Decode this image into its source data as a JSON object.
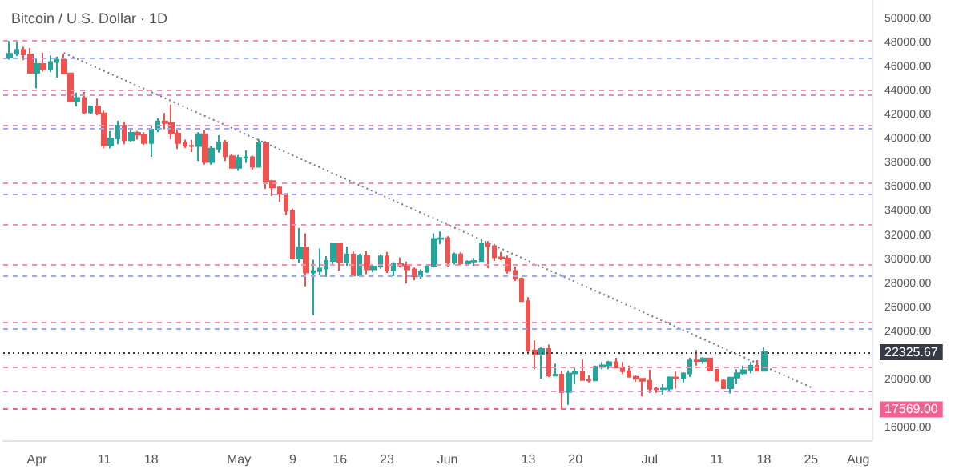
{
  "chart_data": {
    "type": "candlestick",
    "title": "Bitcoin / U.S. Dollar · 1D",
    "x": [
      "--03-28",
      "--03-29",
      "--03-30",
      "--03-31",
      "--04-01",
      "--04-02",
      "--04-03",
      "--04-04",
      "--04-05",
      "--04-06",
      "--04-07",
      "--04-08",
      "--04-09",
      "--04-10",
      "--04-11",
      "--04-12",
      "--04-13",
      "--04-14",
      "--04-15",
      "--04-16",
      "--04-17",
      "--04-18",
      "--04-19",
      "--04-20",
      "--04-21",
      "--04-22",
      "--04-23",
      "--04-24",
      "--04-25",
      "--04-26",
      "--04-27",
      "--04-28",
      "--04-29",
      "--04-30",
      "--05-01",
      "--05-02",
      "--05-03",
      "--05-04",
      "--05-05",
      "--05-06",
      "--05-07",
      "--05-08",
      "--05-09",
      "--05-10",
      "--05-11",
      "--05-12",
      "--05-13",
      "--05-14",
      "--05-15",
      "--05-16",
      "--05-17",
      "--05-18",
      "--05-19",
      "--05-20",
      "--05-21",
      "--05-22",
      "--05-23",
      "--05-24",
      "--05-25",
      "--05-26",
      "--05-27",
      "--05-28",
      "--05-29",
      "--05-30",
      "--05-31",
      "--06-01",
      "--06-02",
      "--06-03",
      "--06-04",
      "--06-05",
      "--06-06",
      "--06-07",
      "--06-08",
      "--06-09",
      "--06-10",
      "--06-11",
      "--06-12",
      "--06-13",
      "--06-14",
      "--06-15",
      "--06-16",
      "--06-17",
      "--06-18",
      "--06-19",
      "--06-20",
      "--06-21",
      "--06-22",
      "--06-23",
      "--06-24",
      "--06-25",
      "--06-26",
      "--06-27",
      "--06-28",
      "--06-29",
      "--06-30",
      "--07-01",
      "--07-02",
      "--07-03",
      "--07-04",
      "--07-05",
      "--07-06",
      "--07-07",
      "--07-08",
      "--07-09",
      "--07-10",
      "--07-11",
      "--07-12",
      "--07-13",
      "--07-14",
      "--07-15",
      "--07-16",
      "--07-17",
      "--07-18"
    ],
    "ohlc": [
      [
        46850,
        48190,
        46650,
        47130
      ],
      [
        47130,
        48100,
        46950,
        47450
      ],
      [
        47450,
        47700,
        46600,
        47070
      ],
      [
        47070,
        47600,
        45500,
        45540
      ],
      [
        45540,
        46700,
        44250,
        46280
      ],
      [
        46280,
        47200,
        45650,
        45820
      ],
      [
        45820,
        47000,
        45600,
        46450
      ],
      [
        46450,
        46900,
        45150,
        46620
      ],
      [
        46620,
        47100,
        45500,
        45500
      ],
      [
        45500,
        45500,
        43100,
        43170
      ],
      [
        43170,
        43900,
        42750,
        43440
      ],
      [
        43440,
        43950,
        42120,
        42250
      ],
      [
        42250,
        42800,
        42150,
        42750
      ],
      [
        42750,
        43400,
        42000,
        42160
      ],
      [
        42160,
        42400,
        39250,
        39530
      ],
      [
        39530,
        40700,
        39250,
        40080
      ],
      [
        40080,
        41550,
        39600,
        41150
      ],
      [
        41150,
        41500,
        39600,
        39940
      ],
      [
        39940,
        40850,
        39800,
        40550
      ],
      [
        40550,
        40700,
        39990,
        40400
      ],
      [
        40400,
        40600,
        39550,
        39710
      ],
      [
        39710,
        41100,
        38550,
        40820
      ],
      [
        40820,
        41750,
        40600,
        41500
      ],
      [
        41500,
        42200,
        40850,
        41370
      ],
      [
        41370,
        42900,
        40000,
        40480
      ],
      [
        40480,
        40800,
        39200,
        39710
      ],
      [
        39710,
        39980,
        39300,
        39470
      ],
      [
        39470,
        39950,
        38950,
        39450
      ],
      [
        39450,
        40600,
        38200,
        40440
      ],
      [
        40440,
        40800,
        37900,
        38120
      ],
      [
        38120,
        39450,
        37900,
        39240
      ],
      [
        39240,
        40350,
        38900,
        39740
      ],
      [
        39740,
        39950,
        38200,
        38600
      ],
      [
        38600,
        38800,
        37600,
        37640
      ],
      [
        37640,
        38700,
        37400,
        38470
      ],
      [
        38470,
        39100,
        38050,
        38520
      ],
      [
        38520,
        38650,
        37500,
        37730
      ],
      [
        37730,
        40000,
        37700,
        39690
      ],
      [
        39690,
        39850,
        35900,
        36550
      ],
      [
        36550,
        36650,
        35300,
        36010
      ],
      [
        36010,
        36150,
        34800,
        35470
      ],
      [
        35470,
        35500,
        33700,
        34060
      ],
      [
        34060,
        34250,
        30000,
        30100
      ],
      [
        30100,
        32650,
        29750,
        31020
      ],
      [
        31020,
        32200,
        27800,
        28940
      ],
      [
        28940,
        30000,
        25400,
        29050
      ],
      [
        29050,
        30950,
        28750,
        29280
      ],
      [
        29280,
        30300,
        28600,
        29900
      ],
      [
        29900,
        31400,
        29500,
        31340
      ],
      [
        31340,
        31350,
        29100,
        29830
      ],
      [
        29830,
        31100,
        29500,
        30440
      ],
      [
        30440,
        30680,
        28700,
        28710
      ],
      [
        28710,
        30500,
        28650,
        30320
      ],
      [
        30320,
        30750,
        28800,
        29200
      ],
      [
        29200,
        29600,
        28950,
        29440
      ],
      [
        29440,
        30450,
        29250,
        30290
      ],
      [
        30290,
        30650,
        28900,
        29100
      ],
      [
        29100,
        29800,
        28650,
        29650
      ],
      [
        29650,
        30200,
        29350,
        29540
      ],
      [
        29540,
        29850,
        28050,
        29200
      ],
      [
        29200,
        29350,
        28300,
        28630
      ],
      [
        28630,
        29200,
        28450,
        29020
      ],
      [
        29020,
        29550,
        28900,
        29450
      ],
      [
        29450,
        32200,
        29350,
        31730
      ],
      [
        31730,
        32350,
        31300,
        31790
      ],
      [
        31790,
        31950,
        29400,
        29800
      ],
      [
        29800,
        30600,
        29600,
        30450
      ],
      [
        30450,
        30650,
        29550,
        29700
      ],
      [
        29700,
        29950,
        29500,
        29860
      ],
      [
        29860,
        30150,
        29500,
        29900
      ],
      [
        29900,
        31750,
        29900,
        31370
      ],
      [
        31370,
        31550,
        29300,
        31130
      ],
      [
        31130,
        31300,
        29900,
        30200
      ],
      [
        30200,
        30650,
        29950,
        30110
      ],
      [
        30110,
        30350,
        28850,
        29080
      ],
      [
        29080,
        29450,
        28250,
        28420
      ],
      [
        28420,
        28550,
        26550,
        26570
      ],
      [
        26570,
        26900,
        22150,
        22470
      ],
      [
        22470,
        23300,
        20900,
        22120
      ],
      [
        22120,
        22750,
        20100,
        22580
      ],
      [
        22580,
        22950,
        20250,
        20380
      ],
      [
        20380,
        21350,
        20300,
        20450
      ],
      [
        20450,
        20750,
        17569,
        19010
      ],
      [
        19010,
        20800,
        17950,
        20550
      ],
      [
        20550,
        21000,
        19650,
        20710
      ],
      [
        20710,
        21700,
        19950,
        20000
      ],
      [
        20000,
        20400,
        19800,
        19970
      ],
      [
        19970,
        21200,
        19900,
        21100
      ],
      [
        21100,
        21500,
        20900,
        21230
      ],
      [
        21230,
        21600,
        20900,
        21490
      ],
      [
        21490,
        21850,
        21000,
        21040
      ],
      [
        21040,
        21500,
        20500,
        20740
      ],
      [
        20740,
        21200,
        20200,
        20280
      ],
      [
        20280,
        20400,
        19850,
        20100
      ],
      [
        20100,
        20150,
        18650,
        19940
      ],
      [
        19940,
        20850,
        18950,
        19270
      ],
      [
        19270,
        19450,
        18950,
        19240
      ],
      [
        19240,
        19650,
        18800,
        19300
      ],
      [
        19300,
        20300,
        19050,
        20230
      ],
      [
        20230,
        20700,
        19300,
        20190
      ],
      [
        20190,
        20650,
        19800,
        20550
      ],
      [
        20550,
        21850,
        20250,
        21630
      ],
      [
        21630,
        22500,
        21200,
        21590
      ],
      [
        21590,
        21900,
        21350,
        21800
      ],
      [
        21800,
        21850,
        20700,
        20850
      ],
      [
        20850,
        20900,
        19900,
        19960
      ],
      [
        19960,
        20050,
        19250,
        19320
      ],
      [
        19320,
        20250,
        18900,
        20200
      ],
      [
        20200,
        20900,
        19650,
        20580
      ],
      [
        20580,
        21200,
        20400,
        20830
      ],
      [
        20830,
        21500,
        20550,
        21190
      ],
      [
        21190,
        21650,
        20750,
        20780
      ],
      [
        20780,
        22700,
        20780,
        22325.67
      ]
    ],
    "series": [
      {
        "type": "line",
        "x": [
          "--04-05",
          "--07-25"
        ],
        "values": [
          47200,
          19400
        ],
        "color": "#787b86",
        "line_style": "dotted"
      }
    ],
    "xlim": [
      "--03-27",
      "--08-03"
    ],
    "xticks": [
      {
        "value": "--04-01",
        "label": "Apr"
      },
      {
        "value": "--04-11",
        "label": "11"
      },
      {
        "value": "--04-18",
        "label": "18"
      },
      {
        "value": "--05-01",
        "label": "May"
      },
      {
        "value": "--05-09",
        "label": "9"
      },
      {
        "value": "--05-16",
        "label": "16"
      },
      {
        "value": "--05-23",
        "label": "23"
      },
      {
        "value": "--06-01",
        "label": "Jun"
      },
      {
        "value": "--06-13",
        "label": "13"
      },
      {
        "value": "--06-20",
        "label": "20"
      },
      {
        "value": "--07-01",
        "label": "Jul"
      },
      {
        "value": "--07-11",
        "label": "11"
      },
      {
        "value": "--07-18",
        "label": "18"
      },
      {
        "value": "--07-25",
        "label": "25"
      },
      {
        "value": "--08-01",
        "label": "Aug"
      }
    ],
    "ylim": [
      15000,
      51600
    ],
    "yticks": [
      {
        "value": 16000,
        "label": "16000.00"
      },
      {
        "value": 20000,
        "label": "20000.00"
      },
      {
        "value": 24000,
        "label": "24000.00"
      },
      {
        "value": 26000,
        "label": "26000.00"
      },
      {
        "value": 28000,
        "label": "28000.00"
      },
      {
        "value": 30000,
        "label": "30000.00"
      },
      {
        "value": 32000,
        "label": "32000.00"
      },
      {
        "value": 34000,
        "label": "34000.00"
      },
      {
        "value": 36000,
        "label": "36000.00"
      },
      {
        "value": 38000,
        "label": "38000.00"
      },
      {
        "value": 40000,
        "label": "40000.00"
      },
      {
        "value": 42000,
        "label": "42000.00"
      },
      {
        "value": 44000,
        "label": "44000.00"
      },
      {
        "value": 46000,
        "label": "46000.00"
      },
      {
        "value": 48000,
        "label": "48000.00"
      },
      {
        "value": 50000,
        "label": "50000.00"
      }
    ],
    "ref_lines": [
      {
        "axis": "y",
        "value": 48240,
        "color": "#f48fb1",
        "line_style": "dashed"
      },
      {
        "axis": "y",
        "value": 46730,
        "color": "#9fa8f5",
        "line_style": "dashed"
      },
      {
        "axis": "y",
        "value": 44050,
        "color": "#f48fb1",
        "line_style": "dashed"
      },
      {
        "axis": "y",
        "value": 43700,
        "color": "#ce93d8",
        "line_style": "dashed"
      },
      {
        "axis": "y",
        "value": 41140,
        "color": "#f48fb1",
        "line_style": "dashed"
      },
      {
        "axis": "y",
        "value": 40930,
        "color": "#9fa8f5",
        "line_style": "dashed"
      },
      {
        "axis": "y",
        "value": 36390,
        "color": "#f48fb1",
        "line_style": "dashed"
      },
      {
        "axis": "y",
        "value": 35520,
        "color": "#9fa8f5",
        "line_style": "dashed"
      },
      {
        "axis": "y",
        "value": 32870,
        "color": "#f48fb1",
        "line_style": "dashed"
      },
      {
        "axis": "y",
        "value": 29640,
        "color": "#f48fb1",
        "line_style": "dashed"
      },
      {
        "axis": "y",
        "value": 28670,
        "color": "#9fa8f5",
        "line_style": "dashed"
      },
      {
        "axis": "y",
        "value": 24780,
        "color": "#f48fb1",
        "line_style": "dashed"
      },
      {
        "axis": "y",
        "value": 24260,
        "color": "#9fa8f5",
        "line_style": "dashed"
      },
      {
        "axis": "y",
        "value": 22325.67,
        "label": "22325.67",
        "color": "#363a45",
        "line_style": "dotted"
      },
      {
        "axis": "y",
        "value": 21150,
        "color": "#f48fb1",
        "line_style": "dashed"
      },
      {
        "axis": "y",
        "value": 19140,
        "color": "#ce93d8",
        "line_style": "dashed"
      },
      {
        "axis": "y",
        "value": 17569,
        "label": "17569.00",
        "color": "#f06292",
        "line_style": "dashed"
      }
    ],
    "grid": false
  }
}
